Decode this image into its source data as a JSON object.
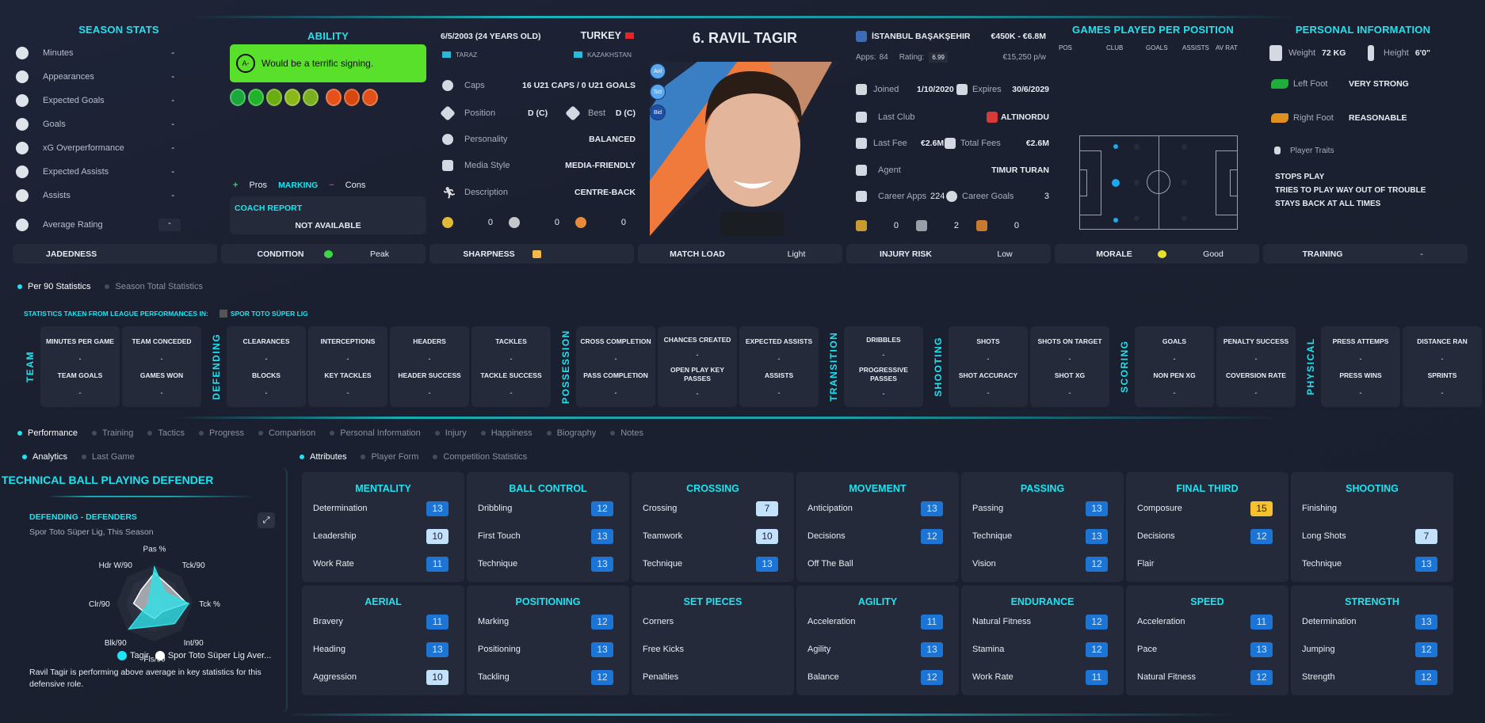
{
  "colors": {
    "accent": "#1ee3f0",
    "ability_box": "#58e02a",
    "attr_high": "#f5c22e",
    "attr_mid": "#1c74d4",
    "attr_low": "#c4e1fb"
  },
  "season_stats": {
    "title": "SEASON STATS",
    "items": [
      {
        "icon": "stopwatch-icon",
        "label": "Minutes",
        "value": "-"
      },
      {
        "icon": "boot-icon",
        "label": "Appearances",
        "value": "-"
      },
      {
        "icon": "xg-icon",
        "label": "Expected Goals",
        "value": "-"
      },
      {
        "icon": "ball-icon",
        "label": "Goals",
        "value": "-"
      },
      {
        "icon": "xg-icon",
        "label": "xG Overperformance",
        "value": "-"
      },
      {
        "icon": "xa-icon",
        "label": "Expected Assists",
        "value": "-"
      },
      {
        "icon": "assist-icon",
        "label": "Assists",
        "value": "-"
      },
      {
        "icon": "clipboard-check-icon",
        "label": "Average Rating",
        "value": "-"
      }
    ]
  },
  "ability": {
    "title": "ABILITY",
    "grade": "A-",
    "text": "Would be a terrific signing.",
    "trait_icon_colors": [
      "#1aa83a",
      "#22b22a",
      "#6aad10",
      "#8ab818",
      "#7ab020",
      "#e8501a",
      "#d8480e",
      "#e05018"
    ],
    "pros_label": "Pros",
    "marking": "MARKING",
    "cons_label": "Cons",
    "coach_report_title": "COACH REPORT",
    "coach_report_value": "NOT AVAILABLE"
  },
  "bio": {
    "dob": "6/5/2003 (24 YEARS OLD)",
    "nationality": "TURKEY",
    "birthplace": "TARAZ",
    "second_nation": "KAZAKHSTAN",
    "caps_label": "Caps",
    "caps": "16 U21 CAPS / 0 U21 GOALS",
    "position_label": "Position",
    "position": "D (C)",
    "best_label": "Best",
    "best": "D (C)",
    "personality_label": "Personality",
    "personality": "BALANCED",
    "media_label": "Media Style",
    "media": "MEDIA-FRIENDLY",
    "description_label": "Description",
    "description": "CENTRE-BACK",
    "medals": [
      "0",
      "0",
      "0"
    ]
  },
  "player": {
    "name": "6. RAVIL TAGIR",
    "quick_buttons": [
      "Anl",
      "Sct",
      "Bid"
    ]
  },
  "club": {
    "name": "İSTANBUL BAŞAKŞEHIR",
    "value_range": "€450K - €6.8M",
    "apps_label": "Apps:",
    "apps": "84",
    "rating_label": "Rating:",
    "rating": "6.99",
    "wage": "€15,250 p/w",
    "joined_label": "Joined",
    "joined": "1/10/2020",
    "expires_label": "Expires",
    "expires": "30/6/2029",
    "last_club_label": "Last Club",
    "last_club": "ALTINORDU",
    "last_fee_label": "Last Fee",
    "last_fee": "€2.6M",
    "total_fees_label": "Total Fees",
    "total_fees": "€2.6M",
    "agent_label": "Agent",
    "agent": "TIMUR TURAN",
    "career_apps_label": "Career Apps",
    "career_apps": "224",
    "career_goals_label": "Career Goals",
    "career_goals": "3",
    "trophies": [
      "0",
      "2",
      "0"
    ]
  },
  "games_per_position": {
    "title": "GAMES PLAYED PER POSITION",
    "columns": [
      "POS",
      "CLUB",
      "GOALS",
      "ASSISTS",
      "AV RAT"
    ]
  },
  "personal": {
    "title": "PERSONAL INFORMATION",
    "weight_label": "Weight",
    "weight": "72 KG",
    "height_label": "Height",
    "height": "6'0\"",
    "left_foot_label": "Left Foot",
    "left_foot": "VERY STRONG",
    "right_foot_label": "Right Foot",
    "right_foot": "REASONABLE",
    "traits_label": "Player Traits",
    "traits": [
      "STOPS PLAY",
      "TRIES TO PLAY WAY OUT OF TROUBLE",
      "STAYS BACK AT ALL TIMES"
    ]
  },
  "status": [
    {
      "label": "JADEDNESS",
      "value": ""
    },
    {
      "label": "CONDITION",
      "value": "Peak",
      "icon": "heart-icon"
    },
    {
      "label": "SHARPNESS",
      "value": "",
      "icon": "sharpness-icon"
    },
    {
      "label": "MATCH LOAD",
      "value": "Light"
    },
    {
      "label": "INJURY RISK",
      "value": "Low"
    },
    {
      "label": "MORALE",
      "value": "Good",
      "icon": "morale-icon"
    },
    {
      "label": "TRAINING",
      "value": "-"
    }
  ],
  "stats_tabs": [
    {
      "label": "Per 90 Statistics",
      "active": true
    },
    {
      "label": "Season Total Statistics",
      "active": false
    }
  ],
  "stats_source": {
    "label": "STATISTICS TAKEN FROM LEAGUE PERFORMANCES IN:",
    "league": "SPOR TOTO SÜPER LIG"
  },
  "stat_groups": [
    {
      "name": "TEAM",
      "cards": [
        [
          {
            "l": "MINUTES PER GAME",
            "v": "-"
          },
          {
            "l": "TEAM GOALS",
            "v": "-"
          }
        ],
        [
          {
            "l": "TEAM CONCEDED",
            "v": "-"
          },
          {
            "l": "GAMES WON",
            "v": "-"
          }
        ]
      ]
    },
    {
      "name": "DEFENDING",
      "cards": [
        [
          {
            "l": "CLEARANCES",
            "v": "-"
          },
          {
            "l": "BLOCKS",
            "v": "-"
          }
        ],
        [
          {
            "l": "INTERCEPTIONS",
            "v": "-"
          },
          {
            "l": "KEY TACKLES",
            "v": "-"
          }
        ],
        [
          {
            "l": "HEADERS",
            "v": "-"
          },
          {
            "l": "HEADER SUCCESS",
            "v": "-"
          }
        ],
        [
          {
            "l": "TACKLES",
            "v": "-"
          },
          {
            "l": "TACKLE SUCCESS",
            "v": "-"
          }
        ]
      ]
    },
    {
      "name": "POSSESSION",
      "cards": [
        [
          {
            "l": "CROSS COMPLETION",
            "v": "-"
          },
          {
            "l": "PASS COMPLETION",
            "v": "-"
          }
        ],
        [
          {
            "l": "CHANCES CREATED",
            "v": "-"
          },
          {
            "l": "OPEN PLAY KEY PASSES",
            "v": "-"
          }
        ],
        [
          {
            "l": "EXPECTED ASSISTS",
            "v": "-"
          },
          {
            "l": "ASSISTS",
            "v": "-"
          }
        ]
      ]
    },
    {
      "name": "TRANSITION",
      "cards": [
        [
          {
            "l": "DRIBBLES",
            "v": "-"
          },
          {
            "l": "PROGRESSIVE PASSES",
            "v": "-"
          }
        ]
      ]
    },
    {
      "name": "SHOOTING",
      "cards": [
        [
          {
            "l": "SHOTS",
            "v": "-"
          },
          {
            "l": "SHOT ACCURACY",
            "v": "-"
          }
        ],
        [
          {
            "l": "SHOTS ON TARGET",
            "v": "-"
          },
          {
            "l": "SHOT XG",
            "v": "-"
          }
        ]
      ]
    },
    {
      "name": "SCORING",
      "cards": [
        [
          {
            "l": "GOALS",
            "v": "-"
          },
          {
            "l": "NON PEN XG",
            "v": "-"
          }
        ],
        [
          {
            "l": "PENALTY SUCCESS",
            "v": "-"
          },
          {
            "l": "COVERSION RATE",
            "v": "-"
          }
        ]
      ]
    },
    {
      "name": "PHYSICAL",
      "cards": [
        [
          {
            "l": "PRESS ATTEMPS",
            "v": "-"
          },
          {
            "l": "PRESS WINS",
            "v": "-"
          }
        ],
        [
          {
            "l": "DISTANCE RAN",
            "v": "-"
          },
          {
            "l": "SPRINTS",
            "v": "-"
          }
        ]
      ]
    }
  ],
  "main_tabs": [
    {
      "label": "Performance",
      "active": true
    },
    {
      "label": "Training"
    },
    {
      "label": "Tactics"
    },
    {
      "label": "Progress"
    },
    {
      "label": "Comparison"
    },
    {
      "label": "Personal Information"
    },
    {
      "label": "Injury"
    },
    {
      "label": "Happiness"
    },
    {
      "label": "Biography"
    },
    {
      "label": "Notes"
    }
  ],
  "left_tabs": [
    {
      "label": "Analytics",
      "active": true
    },
    {
      "label": "Last Game"
    }
  ],
  "right_tabs": [
    {
      "label": "Attributes",
      "active": true
    },
    {
      "label": "Player Form"
    },
    {
      "label": "Competition Statistics"
    }
  ],
  "analytics": {
    "role": "TECHNICAL  BALL PLAYING DEFENDER",
    "chart_title": "DEFENDING - DEFENDERS",
    "chart_subtitle": "Spor Toto Süper Lig, This Season",
    "summary": "Ravil Tagir is performing above average in key statistics for this defensive role.",
    "radar": {
      "axes": [
        "Pas %",
        "Tck/90",
        "Tck %",
        "Int/90",
        "Fls/90",
        "Blk/90",
        "Clr/90",
        "Hdr W/90"
      ],
      "series": [
        {
          "name": "Tagir",
          "color": "#2ee0e6",
          "values": [
            0.95,
            0.4,
            0.9,
            0.75,
            0.6,
            0.95,
            0.15,
            0.2
          ]
        },
        {
          "name": "Spor Toto Süper Lig Aver...",
          "color": "#ffffff",
          "values": [
            0.8,
            0.6,
            0.85,
            0.3,
            0.4,
            0.35,
            0.55,
            0.5
          ]
        }
      ]
    }
  },
  "attributes": [
    {
      "title": "MENTALITY",
      "rows": [
        [
          "Determination",
          13
        ],
        [
          "Leadership",
          10
        ],
        [
          "Work Rate",
          11
        ]
      ]
    },
    {
      "title": "BALL CONTROL",
      "rows": [
        [
          "Dribbling",
          12
        ],
        [
          "First Touch",
          13
        ],
        [
          "Technique",
          13
        ]
      ]
    },
    {
      "title": "CROSSING",
      "rows": [
        [
          "Crossing",
          7
        ],
        [
          "Teamwork",
          10
        ],
        [
          "Technique",
          13
        ]
      ]
    },
    {
      "title": "MOVEMENT",
      "rows": [
        [
          "Anticipation",
          13
        ],
        [
          "Decisions",
          12
        ],
        [
          "Off The Ball",
          null
        ]
      ]
    },
    {
      "title": "PASSING",
      "rows": [
        [
          "Passing",
          13
        ],
        [
          "Technique",
          13
        ],
        [
          "Vision",
          12
        ]
      ]
    },
    {
      "title": "FINAL THIRD",
      "rows": [
        [
          "Composure",
          15
        ],
        [
          "Decisions",
          12
        ],
        [
          "Flair",
          null
        ]
      ]
    },
    {
      "title": "SHOOTING",
      "rows": [
        [
          "Finishing",
          null
        ],
        [
          "Long Shots",
          7
        ],
        [
          "Technique",
          13
        ]
      ]
    },
    {
      "title": "AERIAL",
      "rows": [
        [
          "Bravery",
          11
        ],
        [
          "Heading",
          13
        ],
        [
          "Aggression",
          10
        ]
      ]
    },
    {
      "title": "POSITIONING",
      "rows": [
        [
          "Marking",
          12
        ],
        [
          "Positioning",
          13
        ],
        [
          "Tackling",
          12
        ]
      ]
    },
    {
      "title": "SET PIECES",
      "rows": [
        [
          "Corners",
          null
        ],
        [
          "Free Kicks",
          null
        ],
        [
          "Penalties",
          null
        ]
      ]
    },
    {
      "title": "AGILITY",
      "rows": [
        [
          "Acceleration",
          11
        ],
        [
          "Agility",
          13
        ],
        [
          "Balance",
          12
        ]
      ]
    },
    {
      "title": "ENDURANCE",
      "rows": [
        [
          "Natural Fitness",
          12
        ],
        [
          "Stamina",
          12
        ],
        [
          "Work Rate",
          11
        ]
      ]
    },
    {
      "title": "SPEED",
      "rows": [
        [
          "Acceleration",
          11
        ],
        [
          "Pace",
          13
        ],
        [
          "Natural Fitness",
          12
        ]
      ]
    },
    {
      "title": "STRENGTH",
      "rows": [
        [
          "Determination",
          13
        ],
        [
          "Jumping",
          12
        ],
        [
          "Strength",
          12
        ]
      ]
    }
  ]
}
